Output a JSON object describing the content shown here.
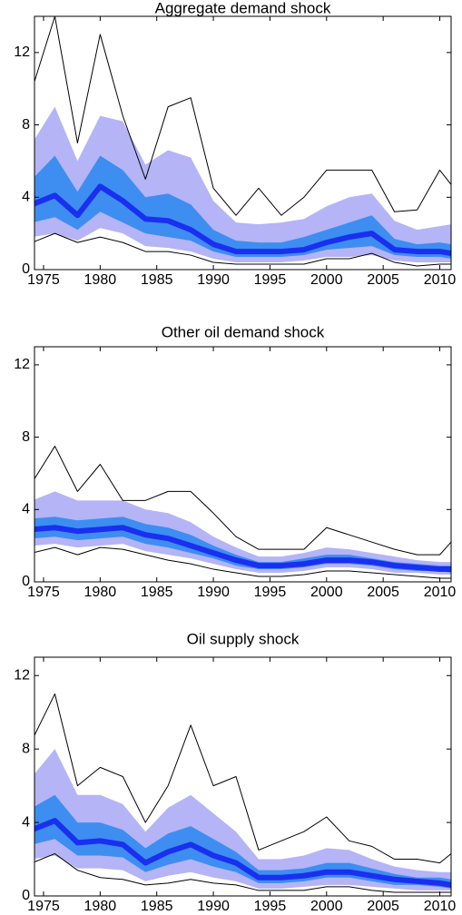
{
  "chart_data": [
    {
      "type": "line",
      "title": "Aggregate demand shock",
      "x": [
        1974,
        1976,
        1978,
        1980,
        1982,
        1984,
        1986,
        1988,
        1990,
        1992,
        1994,
        1996,
        1998,
        2000,
        2002,
        2004,
        2006,
        2008,
        2010,
        2011
      ],
      "xlim": [
        1974.2,
        2011
      ],
      "ylim": [
        0,
        14
      ],
      "xticks": [
        1975,
        1980,
        1985,
        1990,
        1995,
        2000,
        2005,
        2010
      ],
      "yticks": [
        0,
        4,
        8,
        12
      ],
      "bands": [
        {
          "color": "#b4b4f6",
          "upper": [
            7.0,
            9.0,
            6.0,
            8.5,
            8.2,
            5.8,
            6.6,
            6.2,
            3.8,
            2.6,
            2.5,
            2.6,
            2.8,
            3.5,
            4.0,
            4.2,
            2.7,
            2.2,
            2.4,
            2.5
          ],
          "lower": [
            1.8,
            2.0,
            1.6,
            2.3,
            2.0,
            1.3,
            1.2,
            1.0,
            0.6,
            0.4,
            0.4,
            0.4,
            0.5,
            0.7,
            0.7,
            0.8,
            0.5,
            0.4,
            0.4,
            0.4
          ]
        },
        {
          "color": "#3d8ef0",
          "upper": [
            5.0,
            6.3,
            4.3,
            6.3,
            5.5,
            4.0,
            4.2,
            3.6,
            2.2,
            1.6,
            1.5,
            1.5,
            1.8,
            2.2,
            2.6,
            3.0,
            1.7,
            1.4,
            1.5,
            1.4
          ],
          "lower": [
            2.6,
            2.9,
            2.2,
            3.2,
            2.6,
            2.0,
            1.8,
            1.6,
            1.0,
            0.7,
            0.7,
            0.7,
            0.8,
            1.1,
            1.2,
            1.3,
            0.8,
            0.7,
            0.7,
            0.6
          ]
        }
      ],
      "series": [
        {
          "color": "#000000",
          "width": 1,
          "values": [
            10,
            14,
            7,
            13,
            8.5,
            5,
            9,
            9.5,
            4.5,
            3,
            4.5,
            3,
            4,
            5.5,
            5.5,
            5.5,
            3.2,
            3.3,
            5.5,
            4.7
          ]
        },
        {
          "color": "#000000",
          "width": 1,
          "values": [
            1.5,
            2.0,
            1.5,
            1.8,
            1.5,
            1.0,
            1.0,
            0.8,
            0.4,
            0.3,
            0.3,
            0.3,
            0.3,
            0.6,
            0.6,
            0.9,
            0.4,
            0.2,
            0.3,
            0.3
          ]
        },
        {
          "color": "#1a2ff0",
          "width": 6,
          "values": [
            3.6,
            4.1,
            3.0,
            4.6,
            3.8,
            2.8,
            2.7,
            2.2,
            1.4,
            1.0,
            1.0,
            1.0,
            1.1,
            1.5,
            1.8,
            2.0,
            1.1,
            1.0,
            1.0,
            0.9
          ]
        }
      ]
    },
    {
      "type": "line",
      "title": "Other oil demand shock",
      "x": [
        1974,
        1976,
        1978,
        1980,
        1982,
        1984,
        1986,
        1988,
        1990,
        1992,
        1994,
        1996,
        1998,
        2000,
        2002,
        2004,
        2006,
        2008,
        2010,
        2011
      ],
      "xlim": [
        1974.2,
        2011
      ],
      "ylim": [
        0,
        13
      ],
      "xticks": [
        1975,
        1980,
        1985,
        1990,
        1995,
        2000,
        2005,
        2010
      ],
      "yticks": [
        0,
        4,
        8,
        12
      ],
      "bands": [
        {
          "color": "#b4b4f6",
          "upper": [
            4.5,
            5.0,
            4.5,
            4.5,
            4.5,
            4.0,
            3.8,
            3.3,
            2.5,
            1.9,
            1.4,
            1.4,
            1.6,
            1.9,
            1.8,
            1.6,
            1.4,
            1.2,
            1.1,
            1.1
          ],
          "lower": [
            2.0,
            2.1,
            1.9,
            2.0,
            2.1,
            1.7,
            1.5,
            1.3,
            1.0,
            0.7,
            0.5,
            0.5,
            0.6,
            0.8,
            0.8,
            0.7,
            0.5,
            0.5,
            0.4,
            0.4
          ]
        },
        {
          "color": "#3d8ef0",
          "upper": [
            3.5,
            3.6,
            3.4,
            3.5,
            3.6,
            3.2,
            3.0,
            2.6,
            2.0,
            1.5,
            1.1,
            1.1,
            1.3,
            1.5,
            1.5,
            1.3,
            1.1,
            1.0,
            0.9,
            0.9
          ],
          "lower": [
            2.4,
            2.5,
            2.3,
            2.4,
            2.5,
            2.1,
            1.9,
            1.6,
            1.3,
            0.9,
            0.7,
            0.7,
            0.8,
            1.0,
            1.0,
            0.9,
            0.7,
            0.6,
            0.6,
            0.5
          ]
        }
      ],
      "series": [
        {
          "color": "#000000",
          "width": 1,
          "values": [
            5.5,
            7.5,
            5.0,
            6.5,
            4.5,
            4.5,
            5.0,
            5.0,
            3.8,
            2.5,
            1.8,
            1.8,
            1.8,
            3.0,
            2.6,
            2.2,
            1.8,
            1.5,
            1.5,
            2.2
          ]
        },
        {
          "color": "#000000",
          "width": 1,
          "values": [
            1.6,
            1.9,
            1.5,
            1.9,
            1.8,
            1.5,
            1.2,
            1.0,
            0.7,
            0.5,
            0.3,
            0.3,
            0.4,
            0.6,
            0.6,
            0.5,
            0.4,
            0.3,
            0.2,
            0.2
          ]
        },
        {
          "color": "#1a2ff0",
          "width": 6,
          "values": [
            2.9,
            3.0,
            2.8,
            2.9,
            3.0,
            2.6,
            2.4,
            2.0,
            1.6,
            1.2,
            0.9,
            0.9,
            1.0,
            1.2,
            1.2,
            1.1,
            0.9,
            0.8,
            0.7,
            0.7
          ]
        }
      ]
    },
    {
      "type": "line",
      "title": "Oil supply shock",
      "x": [
        1974,
        1976,
        1978,
        1980,
        1982,
        1984,
        1986,
        1988,
        1990,
        1992,
        1994,
        1996,
        1998,
        2000,
        2002,
        2004,
        2006,
        2008,
        2010,
        2011
      ],
      "xlim": [
        1974.2,
        2011
      ],
      "ylim": [
        0,
        13
      ],
      "xticks": [
        1975,
        1980,
        1985,
        1990,
        1995,
        2000,
        2005,
        2010
      ],
      "yticks": [
        0,
        4,
        8,
        12
      ],
      "bands": [
        {
          "color": "#b4b4f6",
          "upper": [
            6.5,
            8.0,
            5.5,
            5.5,
            5.0,
            3.5,
            4.8,
            5.5,
            4.5,
            3.5,
            2.0,
            2.0,
            2.2,
            2.6,
            2.5,
            2.0,
            1.6,
            1.4,
            1.3,
            1.3
          ],
          "lower": [
            2.0,
            2.2,
            1.5,
            1.5,
            1.4,
            0.8,
            1.1,
            1.3,
            1.0,
            0.8,
            0.4,
            0.4,
            0.5,
            0.6,
            0.6,
            0.5,
            0.4,
            0.3,
            0.3,
            0.3
          ]
        },
        {
          "color": "#3d8ef0",
          "upper": [
            4.8,
            5.5,
            4.0,
            4.0,
            3.6,
            2.6,
            3.4,
            3.8,
            3.1,
            2.4,
            1.4,
            1.4,
            1.5,
            1.8,
            1.8,
            1.5,
            1.2,
            1.0,
            1.0,
            0.9
          ],
          "lower": [
            2.8,
            3.1,
            2.2,
            2.2,
            2.1,
            1.3,
            1.7,
            2.0,
            1.6,
            1.3,
            0.7,
            0.7,
            0.8,
            1.0,
            1.0,
            0.8,
            0.6,
            0.6,
            0.5,
            0.4
          ]
        }
      ],
      "series": [
        {
          "color": "#000000",
          "width": 1,
          "values": [
            8.5,
            11,
            6,
            7,
            6.5,
            4,
            6,
            9.3,
            6,
            6.5,
            2.5,
            3,
            3.5,
            4.3,
            3,
            2.7,
            2,
            2,
            1.8,
            2.3
          ]
        },
        {
          "color": "#000000",
          "width": 1,
          "values": [
            1.8,
            2.3,
            1.4,
            1.0,
            0.9,
            0.6,
            0.7,
            0.9,
            0.7,
            0.6,
            0.3,
            0.3,
            0.3,
            0.5,
            0.5,
            0.3,
            0.2,
            0.2,
            0.2,
            0.2
          ]
        },
        {
          "color": "#1a2ff0",
          "width": 6,
          "values": [
            3.6,
            4.1,
            2.9,
            3.0,
            2.8,
            1.8,
            2.4,
            2.8,
            2.2,
            1.8,
            1.0,
            1.0,
            1.1,
            1.3,
            1.3,
            1.1,
            0.9,
            0.8,
            0.7,
            0.6
          ]
        }
      ]
    }
  ]
}
